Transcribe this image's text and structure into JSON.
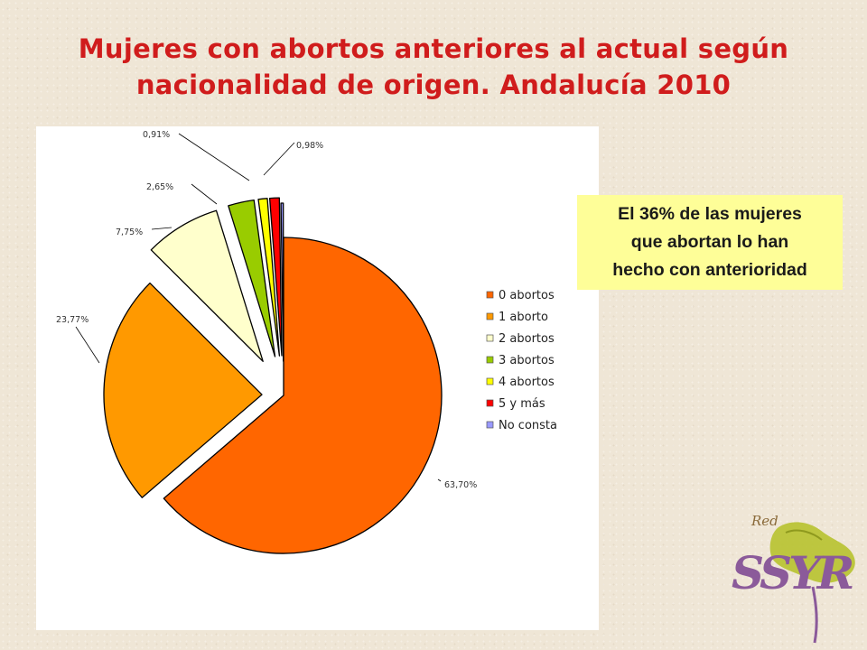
{
  "slide": {
    "title_line1": "Mujeres con abortos anteriores al actual según",
    "title_line2": "nacionalidad de origen. Andalucía 2010",
    "callout_line1": "El 36% de las mujeres",
    "callout_line2": "que abortan lo han",
    "callout_line3": "hecho con anterioridad",
    "logo_text_top": "Red",
    "logo_text_main": "SSYR"
  },
  "chart_data": {
    "type": "pie",
    "exploded": true,
    "legend_position": "right",
    "slices": [
      {
        "name": "0 abortos",
        "value": 63.7,
        "label": "63,70%",
        "color": "#ff6600"
      },
      {
        "name": "1 aborto",
        "value": 23.77,
        "label": "23,77%",
        "color": "#ff9900"
      },
      {
        "name": "2 abortos",
        "value": 7.75,
        "label": "7,75%",
        "color": "#ffffcc"
      },
      {
        "name": "3 abortos",
        "value": 2.65,
        "label": "2,65%",
        "color": "#99cc00"
      },
      {
        "name": "4 abortos",
        "value": 0.91,
        "label": "0,91%",
        "color": "#ffff00"
      },
      {
        "name": "5 y más",
        "value": 0.98,
        "label": "0,98%",
        "color": "#ff0000"
      },
      {
        "name": "No consta",
        "value": 0.24,
        "label": "",
        "color": "#9999ff"
      }
    ]
  }
}
